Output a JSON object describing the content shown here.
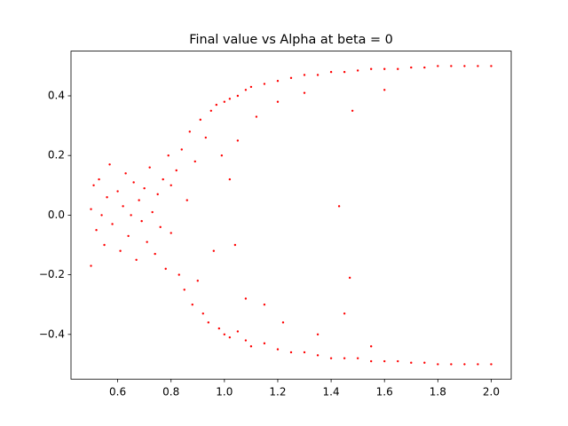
{
  "chart_data": {
    "type": "scatter",
    "title": "Final value vs Alpha at beta = 0",
    "color": "#ff0000",
    "x": [
      0.5,
      0.5,
      0.51,
      0.52,
      0.53,
      0.54,
      0.55,
      0.56,
      0.57,
      0.58,
      0.6,
      0.61,
      0.62,
      0.63,
      0.64,
      0.65,
      0.66,
      0.67,
      0.68,
      0.69,
      0.7,
      0.71,
      0.72,
      0.73,
      0.74,
      0.75,
      0.76,
      0.77,
      0.78,
      0.79,
      0.8,
      0.8,
      0.82,
      0.83,
      0.84,
      0.85,
      0.86,
      0.87,
      0.88,
      0.89,
      0.9,
      0.91,
      0.92,
      0.93,
      0.94,
      0.95,
      0.96,
      0.97,
      0.98,
      0.99,
      1.0,
      1.0,
      1.02,
      1.05,
      1.08,
      1.1,
      1.15,
      1.2,
      1.25,
      1.3,
      1.35,
      1.4,
      1.45,
      1.5,
      1.55,
      1.6,
      1.65,
      1.7,
      1.75,
      1.8,
      1.85,
      1.9,
      1.95,
      2.0,
      1.02,
      1.05,
      1.08,
      1.1,
      1.15,
      1.2,
      1.25,
      1.3,
      1.35,
      1.4,
      1.45,
      1.5,
      1.55,
      1.6,
      1.65,
      1.7,
      1.75,
      1.8,
      1.85,
      1.9,
      1.95,
      2.0,
      1.05,
      1.08,
      1.12,
      1.15,
      1.2,
      1.22,
      1.3,
      1.35,
      1.43,
      1.47,
      1.48,
      1.45,
      1.6,
      1.55,
      1.02,
      1.04
    ],
    "y": [
      0.02,
      -0.17,
      0.1,
      -0.05,
      0.12,
      0.0,
      -0.1,
      0.06,
      0.17,
      -0.03,
      0.08,
      -0.12,
      0.03,
      0.14,
      -0.07,
      0.0,
      0.11,
      -0.15,
      0.05,
      -0.02,
      0.09,
      -0.09,
      0.16,
      0.01,
      -0.13,
      0.07,
      -0.04,
      0.12,
      -0.18,
      0.2,
      -0.06,
      0.1,
      0.15,
      -0.2,
      0.22,
      -0.25,
      0.05,
      0.28,
      -0.3,
      0.18,
      -0.22,
      0.32,
      -0.33,
      0.26,
      -0.36,
      0.35,
      -0.12,
      0.37,
      -0.38,
      0.2,
      -0.4,
      0.38,
      0.39,
      0.4,
      0.42,
      0.43,
      0.44,
      0.45,
      0.46,
      0.47,
      0.47,
      0.48,
      0.48,
      0.485,
      0.49,
      0.49,
      0.49,
      0.495,
      0.495,
      0.5,
      0.5,
      0.5,
      0.5,
      0.5,
      -0.41,
      -0.39,
      -0.42,
      -0.44,
      -0.43,
      -0.45,
      -0.46,
      -0.46,
      -0.47,
      -0.48,
      -0.48,
      -0.48,
      -0.49,
      -0.49,
      -0.49,
      -0.495,
      -0.495,
      -0.5,
      -0.5,
      -0.5,
      -0.5,
      -0.5,
      0.25,
      -0.28,
      0.33,
      -0.3,
      0.38,
      -0.36,
      0.41,
      -0.4,
      0.03,
      -0.21,
      0.35,
      -0.33,
      0.42,
      -0.44,
      0.12,
      -0.1
    ],
    "xlim": [
      0.425,
      2.075
    ],
    "ylim": [
      -0.55,
      0.55
    ],
    "xticks": [
      0.6,
      0.8,
      {
        "value": 1.0,
        "label": "1.0"
      },
      1.2,
      1.4,
      1.6,
      1.8,
      {
        "value": 2.0,
        "label": "2.0"
      }
    ],
    "yticks": [
      {
        "value": -0.4,
        "label": "−0.4"
      },
      {
        "value": -0.2,
        "label": "−0.2"
      },
      {
        "value": 0,
        "label": "0.0"
      },
      0.2,
      0.4
    ]
  }
}
